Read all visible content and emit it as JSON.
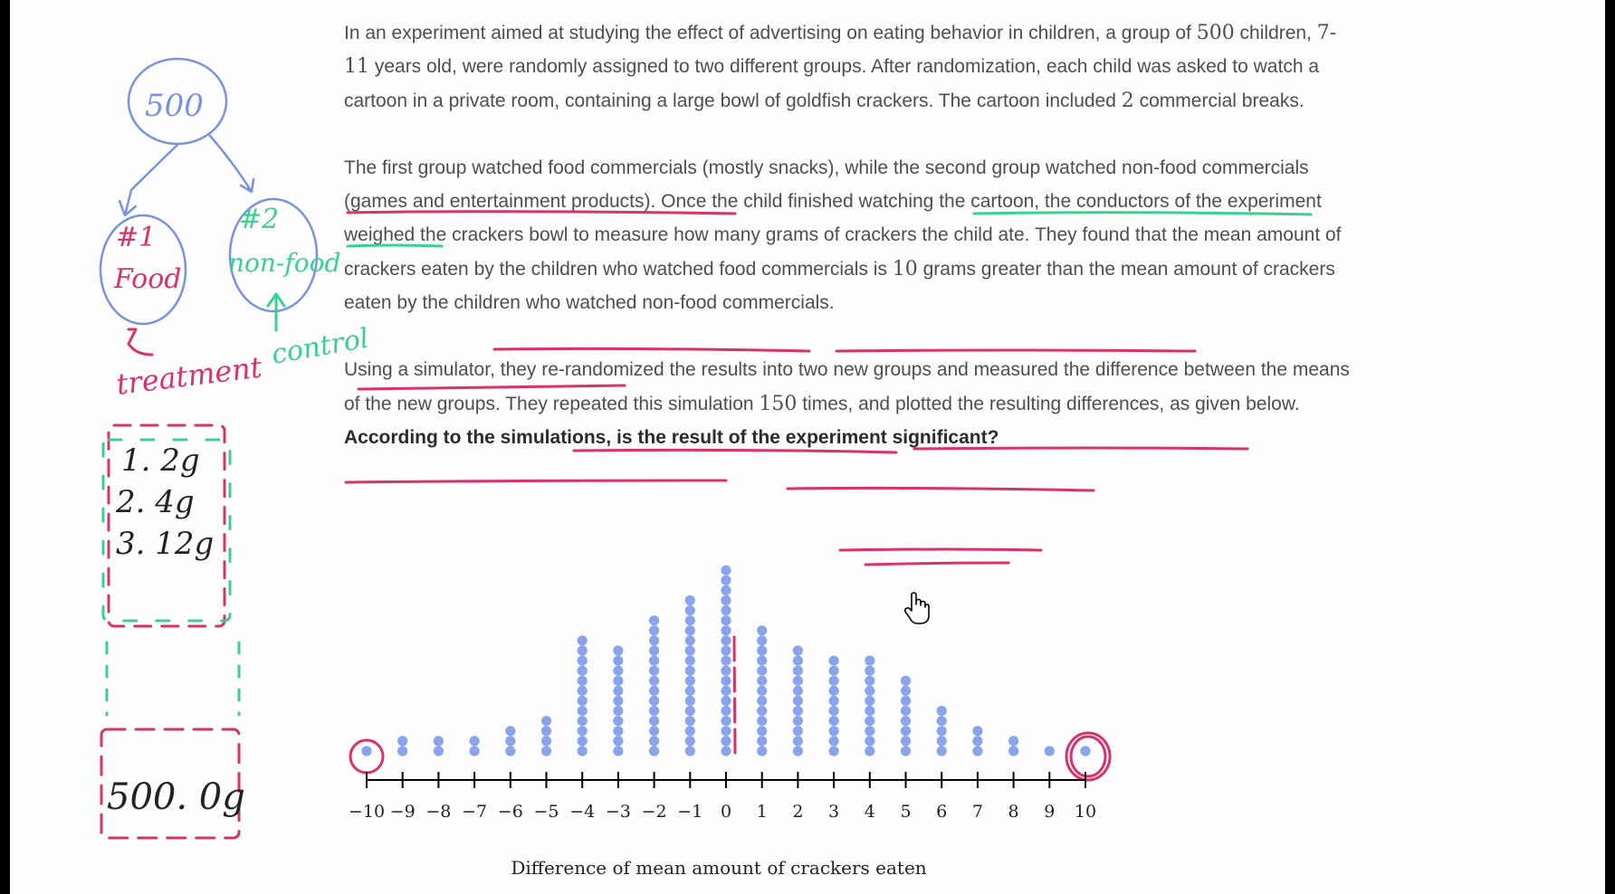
{
  "problem": {
    "p1_a": "In an experiment aimed at studying the effect of advertising on eating behavior in children, a group of",
    "p1_n1": "500",
    "p1_b": " children, ",
    "p1_n2": "7-11",
    "p1_c": " years old, were randomly assigned to two different groups. After randomization, each child was asked to watch a cartoon in a private room, containing a large bowl of goldfish crackers. The cartoon included ",
    "p1_n3": "2",
    "p1_d": " commercial breaks.",
    "p2_a": "The first group watched food commercials (mostly snacks), while the second group watched non-food commercials (games and entertainment products). Once the child finished watching the cartoon, the conductors of the experiment weighed the crackers bowl to measure how many grams of crackers the child ate. They found that the mean amount of crackers eaten by the children who watched food commercials is ",
    "p2_n1": "10",
    "p2_b": " grams greater than the mean amount of crackers eaten by the children who watched non-food commercials.",
    "p3_a": "Using a simulator, they re-randomized the results into two new groups and measured the difference between the means of the new groups. They repeated this simulation ",
    "p3_n1": "150",
    "p3_b": " times, and plotted the resulting differences, as given below.",
    "question": "According to the simulations, is the result of the experiment significant?"
  },
  "annotations": {
    "root_count": "500",
    "group1_label": "#1",
    "group1_name": "Food",
    "group2_label": "#2",
    "group2_name": "non-food",
    "treatment": "treatment",
    "control": "control",
    "list_1": "1.  2g",
    "list_2": "2.  4g",
    "list_3": "3.  12g",
    "list_last": "500.  0g"
  },
  "chart_data": {
    "type": "dot",
    "x": [
      -10,
      -9,
      -8,
      -7,
      -6,
      -5,
      -4,
      -3,
      -2,
      -1,
      0,
      1,
      2,
      3,
      4,
      5,
      6,
      7,
      8,
      9,
      10
    ],
    "counts": [
      1,
      2,
      2,
      2,
      3,
      4,
      12,
      11,
      14,
      16,
      19,
      13,
      11,
      10,
      10,
      8,
      5,
      3,
      2,
      1,
      1
    ],
    "tick_labels": [
      "−10",
      "−9",
      "−8",
      "−7",
      "−6",
      "−5",
      "−4",
      "−3",
      "−2",
      "−1",
      "0",
      "1",
      "2",
      "3",
      "4",
      "5",
      "6",
      "7",
      "8",
      "9",
      "10"
    ],
    "xlabel": "Difference of mean amount of crackers eaten",
    "xlim": [
      -10,
      10
    ],
    "dot_color": "#8aa4ec"
  },
  "colors": {
    "ink_pink": "#d6336c",
    "ink_green": "#3ccf92",
    "ink_blue": "#7a93dc"
  }
}
